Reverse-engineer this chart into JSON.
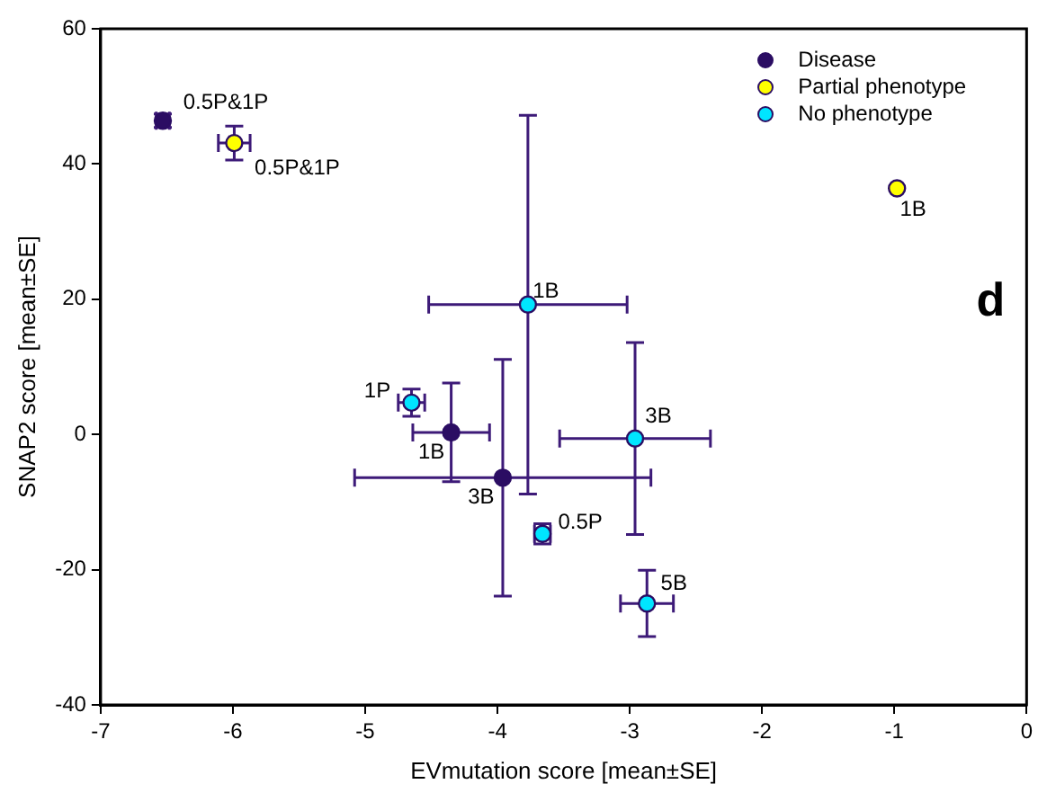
{
  "chart_data": {
    "type": "scatter",
    "xlabel": "EVmutation score [mean±SE]",
    "ylabel": "SNAP2 score [mean±SE]",
    "xlim": [
      -7,
      0
    ],
    "xticks": [
      -7,
      -6,
      -5,
      -4,
      -3,
      -2,
      -1,
      0
    ],
    "ylim": [
      -40,
      60
    ],
    "yticks": [
      -40,
      -20,
      0,
      20,
      40,
      60
    ],
    "grid": false,
    "legend": "top right",
    "marker": "circle",
    "series": [
      {
        "name": "Disease",
        "color": "#2b0d63",
        "x": [
          -6.53,
          -4.35,
          -3.96
        ],
        "values": [
          46.4,
          0.3,
          -6.4
        ],
        "errors": [
          1,
          7.3,
          17.5
        ],
        "xerrors": [
          0.05,
          0.29,
          1.12
        ]
      },
      {
        "name": "Partial phenotype",
        "color": "#ffff00",
        "x": [
          -5.99,
          -0.98
        ],
        "values": [
          43.1,
          36.4
        ],
        "errors": [
          2.5,
          null
        ],
        "xerrors": [
          0.12,
          null
        ]
      },
      {
        "name": "No phenotype",
        "color": "#00e5ff",
        "x": [
          -3.77,
          -4.65,
          -2.96,
          -3.66,
          -2.87
        ],
        "values": [
          19.2,
          4.7,
          -0.6,
          -14.7,
          -25
        ],
        "errors": [
          28,
          2,
          14.2,
          1.5,
          4.9
        ],
        "xerrors": [
          0.75,
          0.1,
          0.57,
          0.06,
          0.2
        ]
      }
    ],
    "annotations": [
      {
        "text": "0.5P&1P",
        "x": -6.53,
        "y": 46.4
      },
      {
        "text": "0.5P&1P",
        "x": -5.99,
        "y": 43.1
      },
      {
        "text": "1B",
        "x": -0.98,
        "y": 36.4
      },
      {
        "text": "1B",
        "x": -3.77,
        "y": 19.2
      },
      {
        "text": "1P",
        "x": -4.65,
        "y": 4.7
      },
      {
        "text": "1B",
        "x": -4.35,
        "y": 0.3
      },
      {
        "text": "3B",
        "x": -3.96,
        "y": -6.4
      },
      {
        "text": "3B",
        "x": -2.96,
        "y": -0.6
      },
      {
        "text": "0.5P",
        "x": -3.66,
        "y": -14.7
      },
      {
        "text": "5B",
        "x": -2.87,
        "y": -25
      },
      "d"
    ]
  }
}
